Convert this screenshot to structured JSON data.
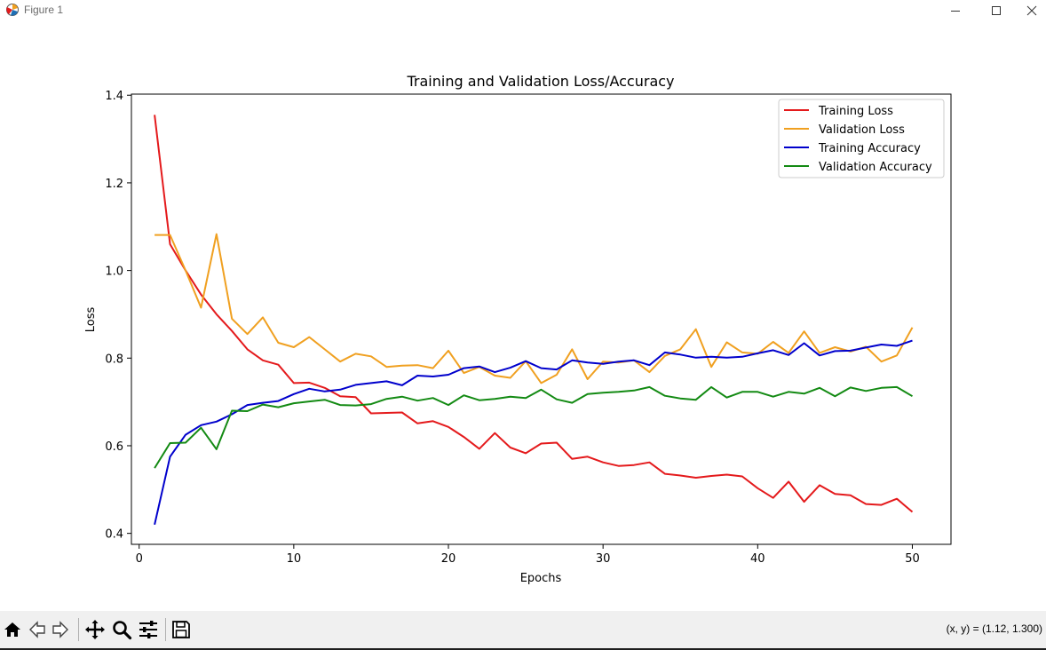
{
  "window": {
    "title": "Figure 1",
    "icons": [
      "matplotlib-app-icon",
      "minimize-icon",
      "maximize-icon",
      "close-icon"
    ]
  },
  "toolbar": {
    "buttons": [
      "home-icon",
      "back-arrow-icon",
      "forward-arrow-icon",
      "pan-icon",
      "zoom-icon",
      "configure-subplots-icon",
      "save-icon"
    ],
    "coords_text": "(x, y) = (1.12, 1.300)"
  },
  "chart_data": {
    "type": "line",
    "title": "Training and Validation Loss/Accuracy",
    "xlabel": "Epochs",
    "ylabel": "Loss",
    "xlim": [
      -0.5,
      52.5
    ],
    "ylim": [
      0.375,
      1.4025
    ],
    "xticks": [
      0,
      10,
      20,
      30,
      40,
      50
    ],
    "yticks": [
      0.4,
      0.6,
      0.8,
      1.0,
      1.2,
      1.4
    ],
    "xtick_labels": [
      "0",
      "10",
      "20",
      "30",
      "40",
      "50"
    ],
    "ytick_labels": [
      "0.4",
      "0.6",
      "0.8",
      "1.0",
      "1.2",
      "1.4"
    ],
    "grid": false,
    "legend_position": "top-right",
    "x": [
      1,
      2,
      3,
      4,
      5,
      6,
      7,
      8,
      9,
      10,
      11,
      12,
      13,
      14,
      15,
      16,
      17,
      18,
      19,
      20,
      21,
      22,
      23,
      24,
      25,
      26,
      27,
      28,
      29,
      30,
      31,
      32,
      33,
      34,
      35,
      36,
      37,
      38,
      39,
      40,
      41,
      42,
      43,
      44,
      45,
      46,
      47,
      48,
      49,
      50
    ],
    "series": [
      {
        "name": "Training Loss",
        "color": "#e41a1c",
        "values": [
          1.355,
          1.06,
          1.0,
          0.945,
          0.9,
          0.862,
          0.82,
          0.795,
          0.785,
          0.743,
          0.744,
          0.732,
          0.713,
          0.711,
          0.674,
          0.675,
          0.676,
          0.651,
          0.656,
          0.643,
          0.62,
          0.593,
          0.629,
          0.596,
          0.583,
          0.605,
          0.607,
          0.57,
          0.575,
          0.562,
          0.554,
          0.556,
          0.562,
          0.536,
          0.532,
          0.527,
          0.531,
          0.534,
          0.53,
          0.503,
          0.481,
          0.518,
          0.472,
          0.51,
          0.49,
          0.487,
          0.467,
          0.465,
          0.479,
          0.449
        ]
      },
      {
        "name": "Validation Loss",
        "color": "#f0a020",
        "values": [
          1.081,
          1.081,
          1.0,
          0.915,
          1.083,
          0.89,
          0.855,
          0.893,
          0.835,
          0.825,
          0.848,
          0.82,
          0.792,
          0.81,
          0.804,
          0.78,
          0.783,
          0.784,
          0.777,
          0.817,
          0.766,
          0.78,
          0.76,
          0.755,
          0.793,
          0.743,
          0.762,
          0.82,
          0.752,
          0.792,
          0.79,
          0.795,
          0.768,
          0.805,
          0.82,
          0.866,
          0.78,
          0.836,
          0.813,
          0.81,
          0.837,
          0.812,
          0.861,
          0.812,
          0.825,
          0.815,
          0.826,
          0.792,
          0.806,
          0.87
        ]
      },
      {
        "name": "Training Accuracy",
        "color": "#0000cc",
        "values": [
          0.42,
          0.575,
          0.625,
          0.647,
          0.655,
          0.672,
          0.693,
          0.698,
          0.702,
          0.718,
          0.73,
          0.724,
          0.728,
          0.739,
          0.743,
          0.747,
          0.738,
          0.76,
          0.758,
          0.762,
          0.777,
          0.781,
          0.768,
          0.778,
          0.793,
          0.777,
          0.774,
          0.795,
          0.79,
          0.787,
          0.792,
          0.795,
          0.784,
          0.813,
          0.808,
          0.801,
          0.803,
          0.801,
          0.803,
          0.811,
          0.818,
          0.807,
          0.834,
          0.806,
          0.816,
          0.817,
          0.824,
          0.831,
          0.828,
          0.84
        ]
      },
      {
        "name": "Validation Accuracy",
        "color": "#138a13",
        "values": [
          0.549,
          0.606,
          0.607,
          0.641,
          0.592,
          0.68,
          0.679,
          0.694,
          0.688,
          0.697,
          0.701,
          0.705,
          0.693,
          0.692,
          0.695,
          0.707,
          0.712,
          0.703,
          0.709,
          0.693,
          0.715,
          0.704,
          0.707,
          0.712,
          0.709,
          0.728,
          0.706,
          0.698,
          0.718,
          0.721,
          0.723,
          0.726,
          0.734,
          0.714,
          0.708,
          0.705,
          0.734,
          0.71,
          0.723,
          0.723,
          0.712,
          0.723,
          0.719,
          0.732,
          0.713,
          0.733,
          0.725,
          0.732,
          0.734,
          0.713
        ]
      }
    ]
  }
}
